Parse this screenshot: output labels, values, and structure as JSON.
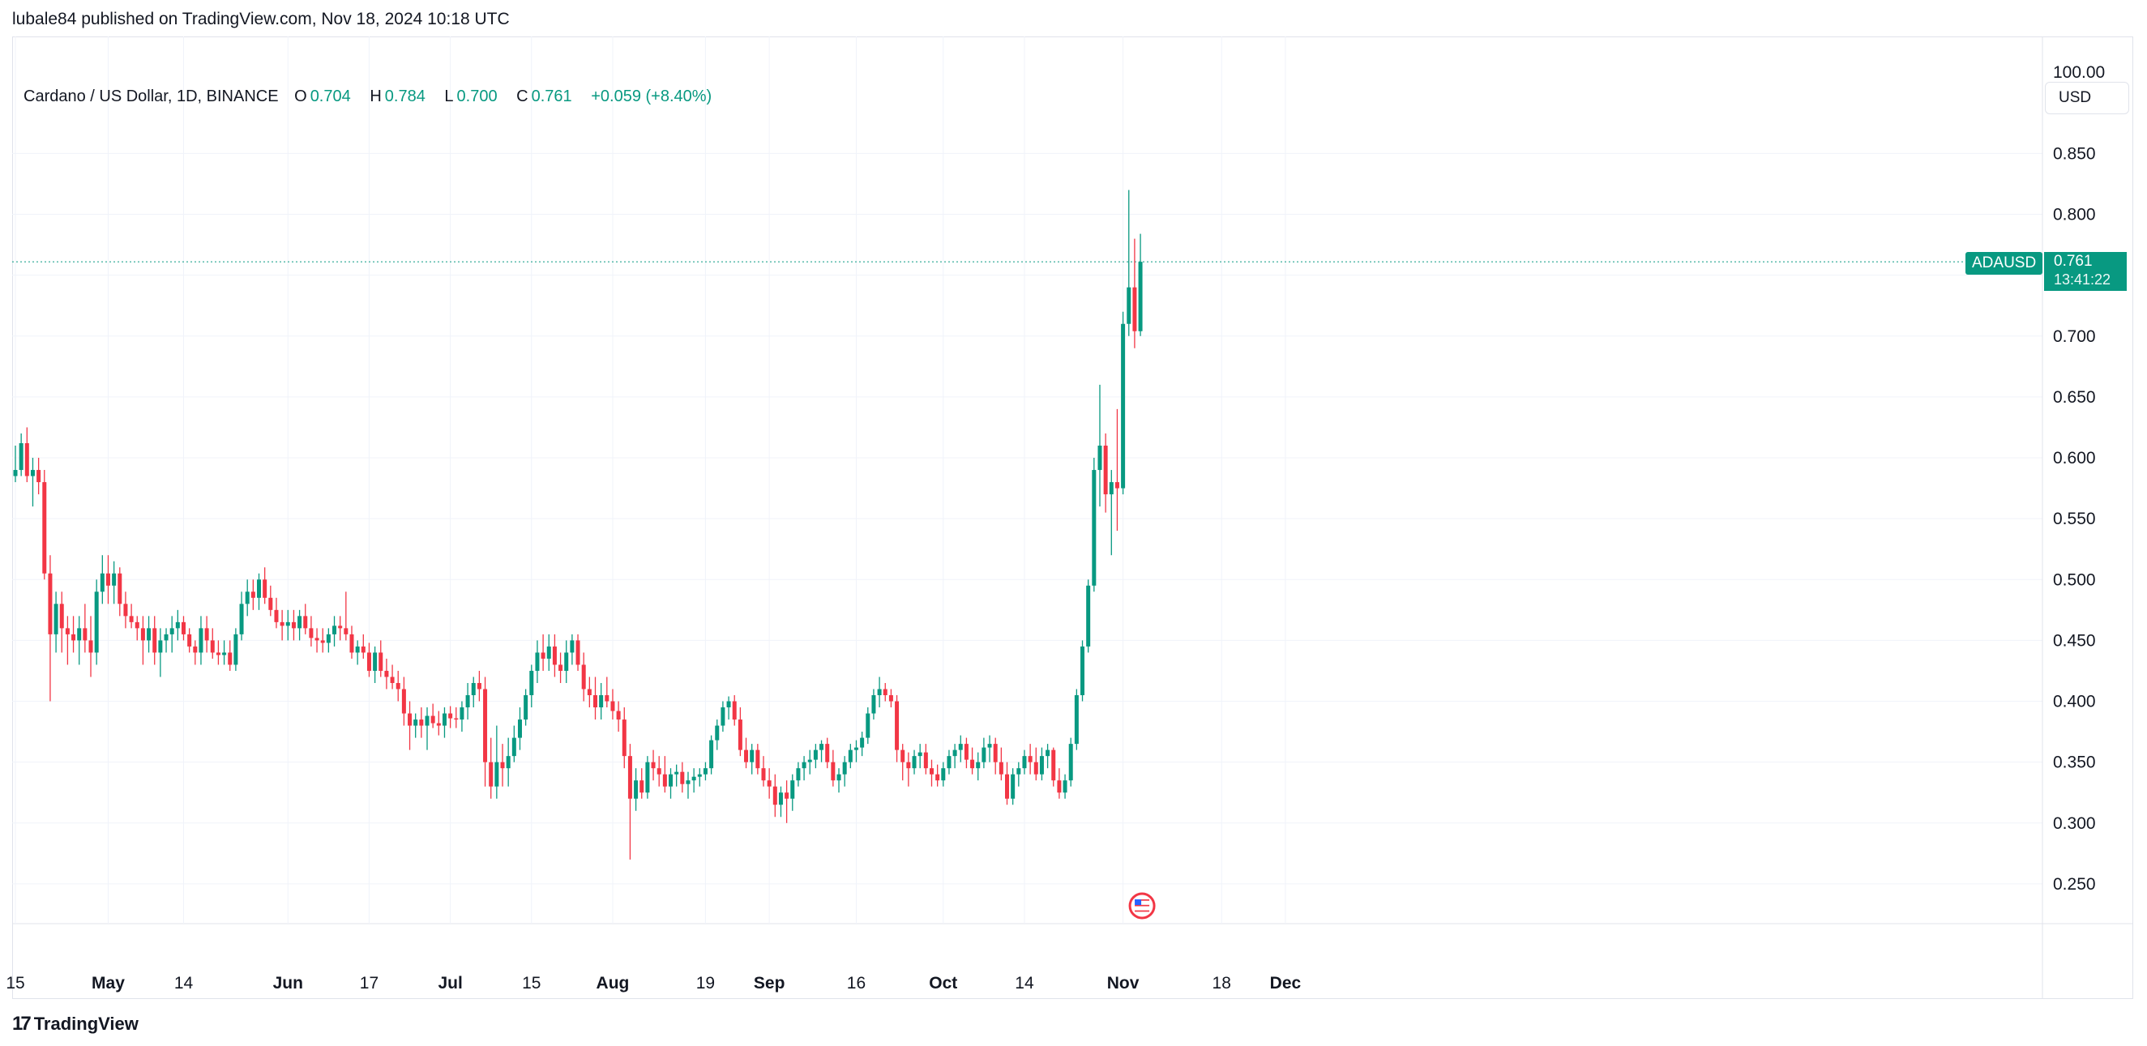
{
  "header": {
    "published_text": "lubale84 published on TradingView.com, Nov 18, 2024 10:18 UTC"
  },
  "legend": {
    "title": "Cardano / US Dollar, 1D, BINANCE",
    "open_label": "O",
    "open": "0.704",
    "high_label": "H",
    "high": "0.784",
    "low_label": "L",
    "low": "0.700",
    "close_label": "C",
    "close": "0.761",
    "change": "+0.059 (+8.40%)"
  },
  "currency_button": "USD",
  "price_tag": {
    "symbol": "ADAUSD",
    "price": "0.761",
    "countdown": "13:41:22"
  },
  "brand": {
    "logo_text": "TradingView",
    "logo_mark": "17"
  },
  "colors": {
    "up": "#089981",
    "down": "#f23645",
    "grid": "#f0f3fa",
    "axis_text": "#131722"
  },
  "icons": {
    "event_marker": "us-flag-icon"
  },
  "chart_data": {
    "type": "candlestick",
    "symbol": "ADAUSD",
    "interval": "1D",
    "y_axis": {
      "ticks": [
        0.25,
        0.3,
        0.35,
        0.4,
        0.45,
        0.5,
        0.55,
        0.6,
        0.65,
        0.7,
        0.75,
        0.8,
        0.85
      ],
      "tick_labels": [
        "0.250",
        "0.300",
        "0.350",
        "0.400",
        "0.450",
        "0.500",
        "0.550",
        "0.600",
        "0.650",
        "0.700",
        "",
        "0.800",
        "0.850"
      ],
      "top_label": "100.00",
      "range": [
        0.22,
        0.9
      ]
    },
    "x_axis": {
      "labels": [
        "15",
        "May",
        "14",
        "Jun",
        "17",
        "Jul",
        "15",
        "Aug",
        "19",
        "Sep",
        "16",
        "Oct",
        "14",
        "Nov",
        "18",
        "Dec"
      ],
      "label_days": [
        0,
        16,
        29,
        47,
        61,
        75,
        89,
        103,
        119,
        130,
        145,
        160,
        174,
        191,
        208,
        219
      ],
      "bold": [
        "May",
        "Jun",
        "Jul",
        "Aug",
        "Sep",
        "Oct",
        "Nov",
        "Dec"
      ]
    },
    "last_price": 0.761,
    "ohlc": [
      [
        0.585,
        0.61,
        0.58,
        0.59
      ],
      [
        0.59,
        0.62,
        0.585,
        0.612
      ],
      [
        0.612,
        0.625,
        0.58,
        0.585
      ],
      [
        0.585,
        0.6,
        0.56,
        0.59
      ],
      [
        0.59,
        0.6,
        0.57,
        0.58
      ],
      [
        0.58,
        0.59,
        0.5,
        0.505
      ],
      [
        0.505,
        0.52,
        0.4,
        0.455
      ],
      [
        0.455,
        0.49,
        0.44,
        0.48
      ],
      [
        0.48,
        0.49,
        0.44,
        0.46
      ],
      [
        0.46,
        0.47,
        0.43,
        0.455
      ],
      [
        0.455,
        0.47,
        0.44,
        0.45
      ],
      [
        0.45,
        0.47,
        0.43,
        0.46
      ],
      [
        0.46,
        0.48,
        0.44,
        0.45
      ],
      [
        0.45,
        0.47,
        0.42,
        0.44
      ],
      [
        0.44,
        0.5,
        0.43,
        0.49
      ],
      [
        0.49,
        0.52,
        0.48,
        0.505
      ],
      [
        0.505,
        0.52,
        0.48,
        0.495
      ],
      [
        0.495,
        0.515,
        0.48,
        0.505
      ],
      [
        0.505,
        0.51,
        0.47,
        0.48
      ],
      [
        0.48,
        0.49,
        0.46,
        0.47
      ],
      [
        0.47,
        0.48,
        0.46,
        0.465
      ],
      [
        0.465,
        0.47,
        0.45,
        0.46
      ],
      [
        0.46,
        0.47,
        0.43,
        0.45
      ],
      [
        0.45,
        0.47,
        0.44,
        0.46
      ],
      [
        0.46,
        0.47,
        0.43,
        0.44
      ],
      [
        0.44,
        0.46,
        0.42,
        0.45
      ],
      [
        0.45,
        0.46,
        0.44,
        0.455
      ],
      [
        0.455,
        0.47,
        0.44,
        0.46
      ],
      [
        0.46,
        0.475,
        0.45,
        0.465
      ],
      [
        0.465,
        0.47,
        0.45,
        0.455
      ],
      [
        0.455,
        0.46,
        0.44,
        0.445
      ],
      [
        0.445,
        0.45,
        0.43,
        0.44
      ],
      [
        0.44,
        0.47,
        0.43,
        0.46
      ],
      [
        0.46,
        0.47,
        0.44,
        0.45
      ],
      [
        0.45,
        0.46,
        0.435,
        0.44
      ],
      [
        0.44,
        0.45,
        0.43,
        0.438
      ],
      [
        0.438,
        0.45,
        0.43,
        0.44
      ],
      [
        0.44,
        0.45,
        0.425,
        0.43
      ],
      [
        0.43,
        0.46,
        0.425,
        0.455
      ],
      [
        0.455,
        0.49,
        0.45,
        0.48
      ],
      [
        0.48,
        0.5,
        0.47,
        0.49
      ],
      [
        0.49,
        0.5,
        0.475,
        0.485
      ],
      [
        0.485,
        0.505,
        0.475,
        0.5
      ],
      [
        0.5,
        0.51,
        0.48,
        0.485
      ],
      [
        0.485,
        0.495,
        0.47,
        0.475
      ],
      [
        0.475,
        0.485,
        0.46,
        0.465
      ],
      [
        0.465,
        0.475,
        0.45,
        0.462
      ],
      [
        0.462,
        0.475,
        0.45,
        0.465
      ],
      [
        0.465,
        0.475,
        0.45,
        0.46
      ],
      [
        0.46,
        0.475,
        0.45,
        0.47
      ],
      [
        0.47,
        0.48,
        0.455,
        0.46
      ],
      [
        0.46,
        0.47,
        0.445,
        0.452
      ],
      [
        0.452,
        0.46,
        0.44,
        0.45
      ],
      [
        0.45,
        0.46,
        0.44,
        0.448
      ],
      [
        0.448,
        0.46,
        0.44,
        0.455
      ],
      [
        0.455,
        0.47,
        0.445,
        0.462
      ],
      [
        0.462,
        0.47,
        0.45,
        0.46
      ],
      [
        0.46,
        0.49,
        0.45,
        0.455
      ],
      [
        0.455,
        0.462,
        0.435,
        0.44
      ],
      [
        0.44,
        0.45,
        0.43,
        0.445
      ],
      [
        0.445,
        0.455,
        0.435,
        0.44
      ],
      [
        0.44,
        0.448,
        0.42,
        0.425
      ],
      [
        0.425,
        0.445,
        0.415,
        0.44
      ],
      [
        0.44,
        0.45,
        0.42,
        0.425
      ],
      [
        0.425,
        0.435,
        0.41,
        0.42
      ],
      [
        0.42,
        0.43,
        0.41,
        0.415
      ],
      [
        0.415,
        0.425,
        0.4,
        0.41
      ],
      [
        0.41,
        0.42,
        0.38,
        0.39
      ],
      [
        0.39,
        0.4,
        0.36,
        0.38
      ],
      [
        0.38,
        0.39,
        0.37,
        0.385
      ],
      [
        0.385,
        0.395,
        0.37,
        0.38
      ],
      [
        0.38,
        0.395,
        0.36,
        0.388
      ],
      [
        0.388,
        0.398,
        0.378,
        0.382
      ],
      [
        0.382,
        0.392,
        0.372,
        0.38
      ],
      [
        0.38,
        0.395,
        0.37,
        0.39
      ],
      [
        0.39,
        0.396,
        0.378,
        0.386
      ],
      [
        0.386,
        0.395,
        0.378,
        0.385
      ],
      [
        0.385,
        0.4,
        0.375,
        0.395
      ],
      [
        0.395,
        0.415,
        0.385,
        0.405
      ],
      [
        0.405,
        0.42,
        0.395,
        0.415
      ],
      [
        0.415,
        0.425,
        0.4,
        0.41
      ],
      [
        0.41,
        0.42,
        0.33,
        0.35
      ],
      [
        0.35,
        0.37,
        0.32,
        0.33
      ],
      [
        0.33,
        0.38,
        0.32,
        0.35
      ],
      [
        0.35,
        0.365,
        0.33,
        0.345
      ],
      [
        0.345,
        0.37,
        0.33,
        0.355
      ],
      [
        0.355,
        0.38,
        0.35,
        0.37
      ],
      [
        0.37,
        0.395,
        0.36,
        0.385
      ],
      [
        0.385,
        0.41,
        0.38,
        0.405
      ],
      [
        0.405,
        0.43,
        0.395,
        0.425
      ],
      [
        0.425,
        0.45,
        0.415,
        0.44
      ],
      [
        0.44,
        0.455,
        0.425,
        0.435
      ],
      [
        0.435,
        0.455,
        0.425,
        0.445
      ],
      [
        0.445,
        0.455,
        0.42,
        0.43
      ],
      [
        0.43,
        0.44,
        0.415,
        0.425
      ],
      [
        0.425,
        0.45,
        0.415,
        0.44
      ],
      [
        0.44,
        0.455,
        0.43,
        0.45
      ],
      [
        0.45,
        0.455,
        0.425,
        0.43
      ],
      [
        0.43,
        0.44,
        0.4,
        0.41
      ],
      [
        0.41,
        0.42,
        0.395,
        0.405
      ],
      [
        0.405,
        0.42,
        0.385,
        0.395
      ],
      [
        0.395,
        0.415,
        0.385,
        0.405
      ],
      [
        0.405,
        0.42,
        0.395,
        0.4
      ],
      [
        0.4,
        0.41,
        0.385,
        0.392
      ],
      [
        0.392,
        0.4,
        0.375,
        0.385
      ],
      [
        0.385,
        0.395,
        0.345,
        0.355
      ],
      [
        0.355,
        0.365,
        0.27,
        0.32
      ],
      [
        0.32,
        0.345,
        0.31,
        0.335
      ],
      [
        0.335,
        0.345,
        0.32,
        0.325
      ],
      [
        0.325,
        0.355,
        0.32,
        0.35
      ],
      [
        0.35,
        0.36,
        0.335,
        0.345
      ],
      [
        0.345,
        0.355,
        0.33,
        0.34
      ],
      [
        0.34,
        0.355,
        0.325,
        0.33
      ],
      [
        0.33,
        0.345,
        0.32,
        0.34
      ],
      [
        0.34,
        0.348,
        0.33,
        0.342
      ],
      [
        0.342,
        0.35,
        0.325,
        0.332
      ],
      [
        0.332,
        0.342,
        0.32,
        0.335
      ],
      [
        0.335,
        0.345,
        0.325,
        0.338
      ],
      [
        0.338,
        0.345,
        0.33,
        0.34
      ],
      [
        0.34,
        0.35,
        0.335,
        0.345
      ],
      [
        0.345,
        0.372,
        0.34,
        0.368
      ],
      [
        0.368,
        0.385,
        0.36,
        0.38
      ],
      [
        0.38,
        0.4,
        0.375,
        0.395
      ],
      [
        0.395,
        0.404,
        0.385,
        0.4
      ],
      [
        0.4,
        0.405,
        0.38,
        0.385
      ],
      [
        0.385,
        0.395,
        0.355,
        0.36
      ],
      [
        0.36,
        0.37,
        0.345,
        0.35
      ],
      [
        0.35,
        0.365,
        0.34,
        0.36
      ],
      [
        0.36,
        0.365,
        0.34,
        0.345
      ],
      [
        0.345,
        0.355,
        0.33,
        0.335
      ],
      [
        0.335,
        0.345,
        0.32,
        0.33
      ],
      [
        0.33,
        0.34,
        0.305,
        0.315
      ],
      [
        0.315,
        0.33,
        0.305,
        0.325
      ],
      [
        0.325,
        0.335,
        0.3,
        0.32
      ],
      [
        0.32,
        0.34,
        0.31,
        0.335
      ],
      [
        0.335,
        0.35,
        0.33,
        0.345
      ],
      [
        0.345,
        0.355,
        0.335,
        0.35
      ],
      [
        0.35,
        0.36,
        0.34,
        0.352
      ],
      [
        0.352,
        0.365,
        0.345,
        0.36
      ],
      [
        0.36,
        0.368,
        0.35,
        0.365
      ],
      [
        0.365,
        0.37,
        0.345,
        0.35
      ],
      [
        0.35,
        0.36,
        0.33,
        0.335
      ],
      [
        0.335,
        0.345,
        0.325,
        0.34
      ],
      [
        0.34,
        0.355,
        0.33,
        0.35
      ],
      [
        0.35,
        0.365,
        0.345,
        0.36
      ],
      [
        0.36,
        0.368,
        0.35,
        0.362
      ],
      [
        0.362,
        0.375,
        0.355,
        0.37
      ],
      [
        0.37,
        0.395,
        0.365,
        0.39
      ],
      [
        0.39,
        0.41,
        0.385,
        0.405
      ],
      [
        0.405,
        0.42,
        0.395,
        0.41
      ],
      [
        0.41,
        0.415,
        0.4,
        0.405
      ],
      [
        0.405,
        0.41,
        0.395,
        0.4
      ],
      [
        0.4,
        0.405,
        0.35,
        0.36
      ],
      [
        0.36,
        0.365,
        0.335,
        0.35
      ],
      [
        0.35,
        0.358,
        0.33,
        0.345
      ],
      [
        0.345,
        0.36,
        0.34,
        0.355
      ],
      [
        0.355,
        0.365,
        0.345,
        0.358
      ],
      [
        0.358,
        0.365,
        0.34,
        0.345
      ],
      [
        0.345,
        0.352,
        0.33,
        0.34
      ],
      [
        0.34,
        0.348,
        0.33,
        0.335
      ],
      [
        0.335,
        0.35,
        0.33,
        0.345
      ],
      [
        0.345,
        0.36,
        0.34,
        0.355
      ],
      [
        0.355,
        0.365,
        0.345,
        0.36
      ],
      [
        0.36,
        0.372,
        0.35,
        0.365
      ],
      [
        0.365,
        0.37,
        0.345,
        0.352
      ],
      [
        0.352,
        0.362,
        0.34,
        0.345
      ],
      [
        0.345,
        0.358,
        0.335,
        0.35
      ],
      [
        0.35,
        0.37,
        0.345,
        0.362
      ],
      [
        0.362,
        0.372,
        0.35,
        0.365
      ],
      [
        0.365,
        0.37,
        0.34,
        0.35
      ],
      [
        0.35,
        0.362,
        0.335,
        0.34
      ],
      [
        0.34,
        0.35,
        0.315,
        0.32
      ],
      [
        0.32,
        0.345,
        0.315,
        0.34
      ],
      [
        0.34,
        0.35,
        0.33,
        0.345
      ],
      [
        0.345,
        0.36,
        0.34,
        0.355
      ],
      [
        0.355,
        0.365,
        0.34,
        0.35
      ],
      [
        0.35,
        0.362,
        0.335,
        0.34
      ],
      [
        0.34,
        0.362,
        0.335,
        0.355
      ],
      [
        0.355,
        0.365,
        0.345,
        0.36
      ],
      [
        0.36,
        0.362,
        0.33,
        0.335
      ],
      [
        0.335,
        0.345,
        0.32,
        0.325
      ],
      [
        0.325,
        0.34,
        0.32,
        0.335
      ],
      [
        0.335,
        0.37,
        0.33,
        0.365
      ],
      [
        0.365,
        0.41,
        0.36,
        0.405
      ],
      [
        0.405,
        0.45,
        0.4,
        0.445
      ],
      [
        0.445,
        0.5,
        0.44,
        0.495
      ],
      [
        0.495,
        0.6,
        0.49,
        0.59
      ],
      [
        0.59,
        0.66,
        0.56,
        0.61
      ],
      [
        0.61,
        0.62,
        0.555,
        0.57
      ],
      [
        0.57,
        0.59,
        0.52,
        0.58
      ],
      [
        0.58,
        0.64,
        0.54,
        0.575
      ],
      [
        0.575,
        0.72,
        0.57,
        0.71
      ],
      [
        0.71,
        0.82,
        0.7,
        0.74
      ],
      [
        0.74,
        0.78,
        0.69,
        0.704
      ],
      [
        0.704,
        0.784,
        0.7,
        0.761
      ]
    ]
  }
}
